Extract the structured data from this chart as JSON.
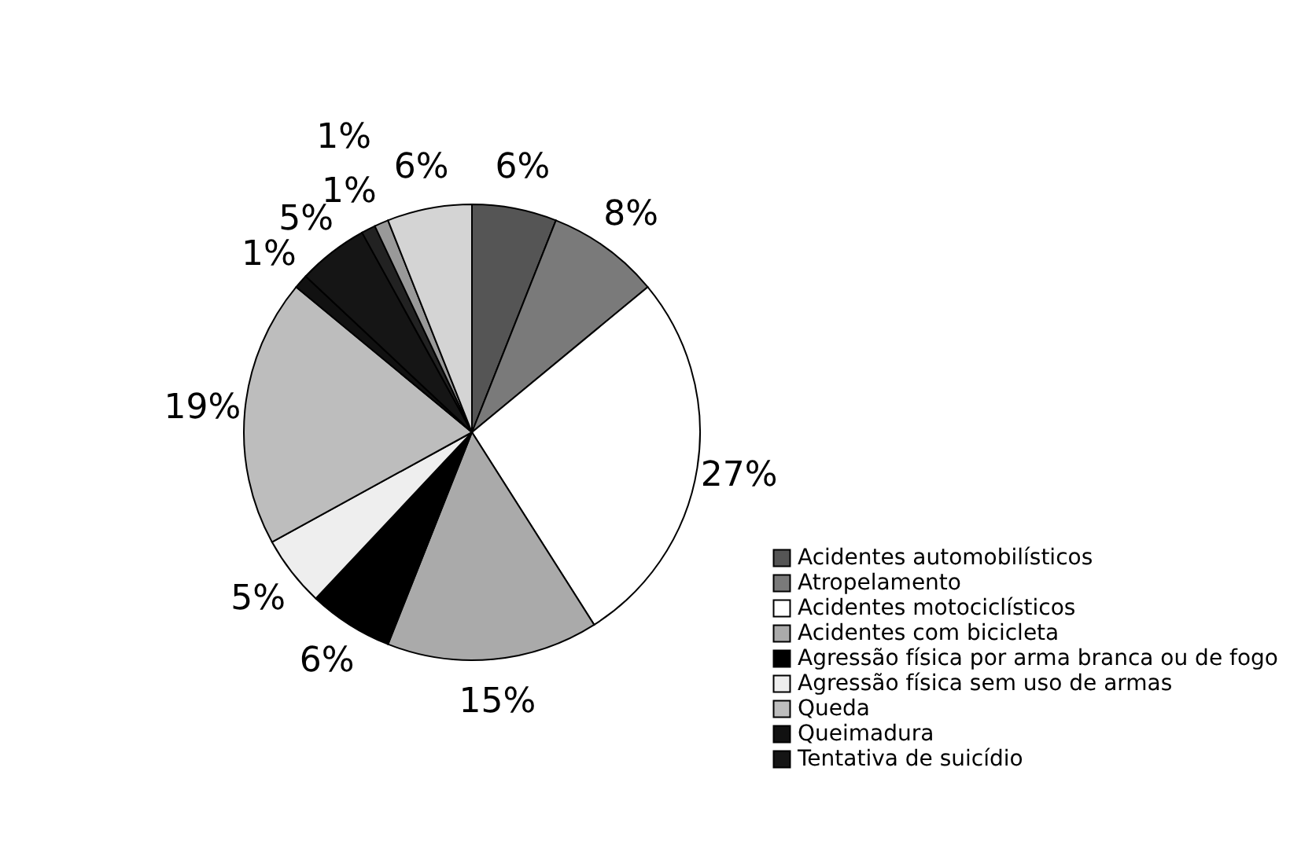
{
  "chart_data": {
    "type": "pie",
    "categories": [
      "Acidentes automobilísticos",
      "Atropelamento",
      "Acidentes motociclísticos",
      "Acidentes com bicicleta",
      "Agressão física por arma branca ou de fogo",
      "Agressão física sem uso de armas",
      "Queda",
      "Queimadura",
      "Tentativa de suicídio",
      null,
      null,
      null
    ],
    "values": [
      6,
      8,
      27,
      15,
      6,
      5,
      19,
      1,
      5,
      1,
      1,
      6
    ],
    "value_labels": [
      "6%",
      "8%",
      "27%",
      "15%",
      "6%",
      "5%",
      "19%",
      "1%",
      "5%",
      "1%",
      "1%",
      "6%"
    ],
    "colors": [
      "#555555",
      "#7a7a7a",
      "#ffffff",
      "#aaaaaa",
      "#000000",
      "#eeeeee",
      "#bdbdbd",
      "#111111",
      "#151515",
      "#222222",
      "#999999",
      "#d4d4d4"
    ],
    "legend": "bottom right"
  }
}
